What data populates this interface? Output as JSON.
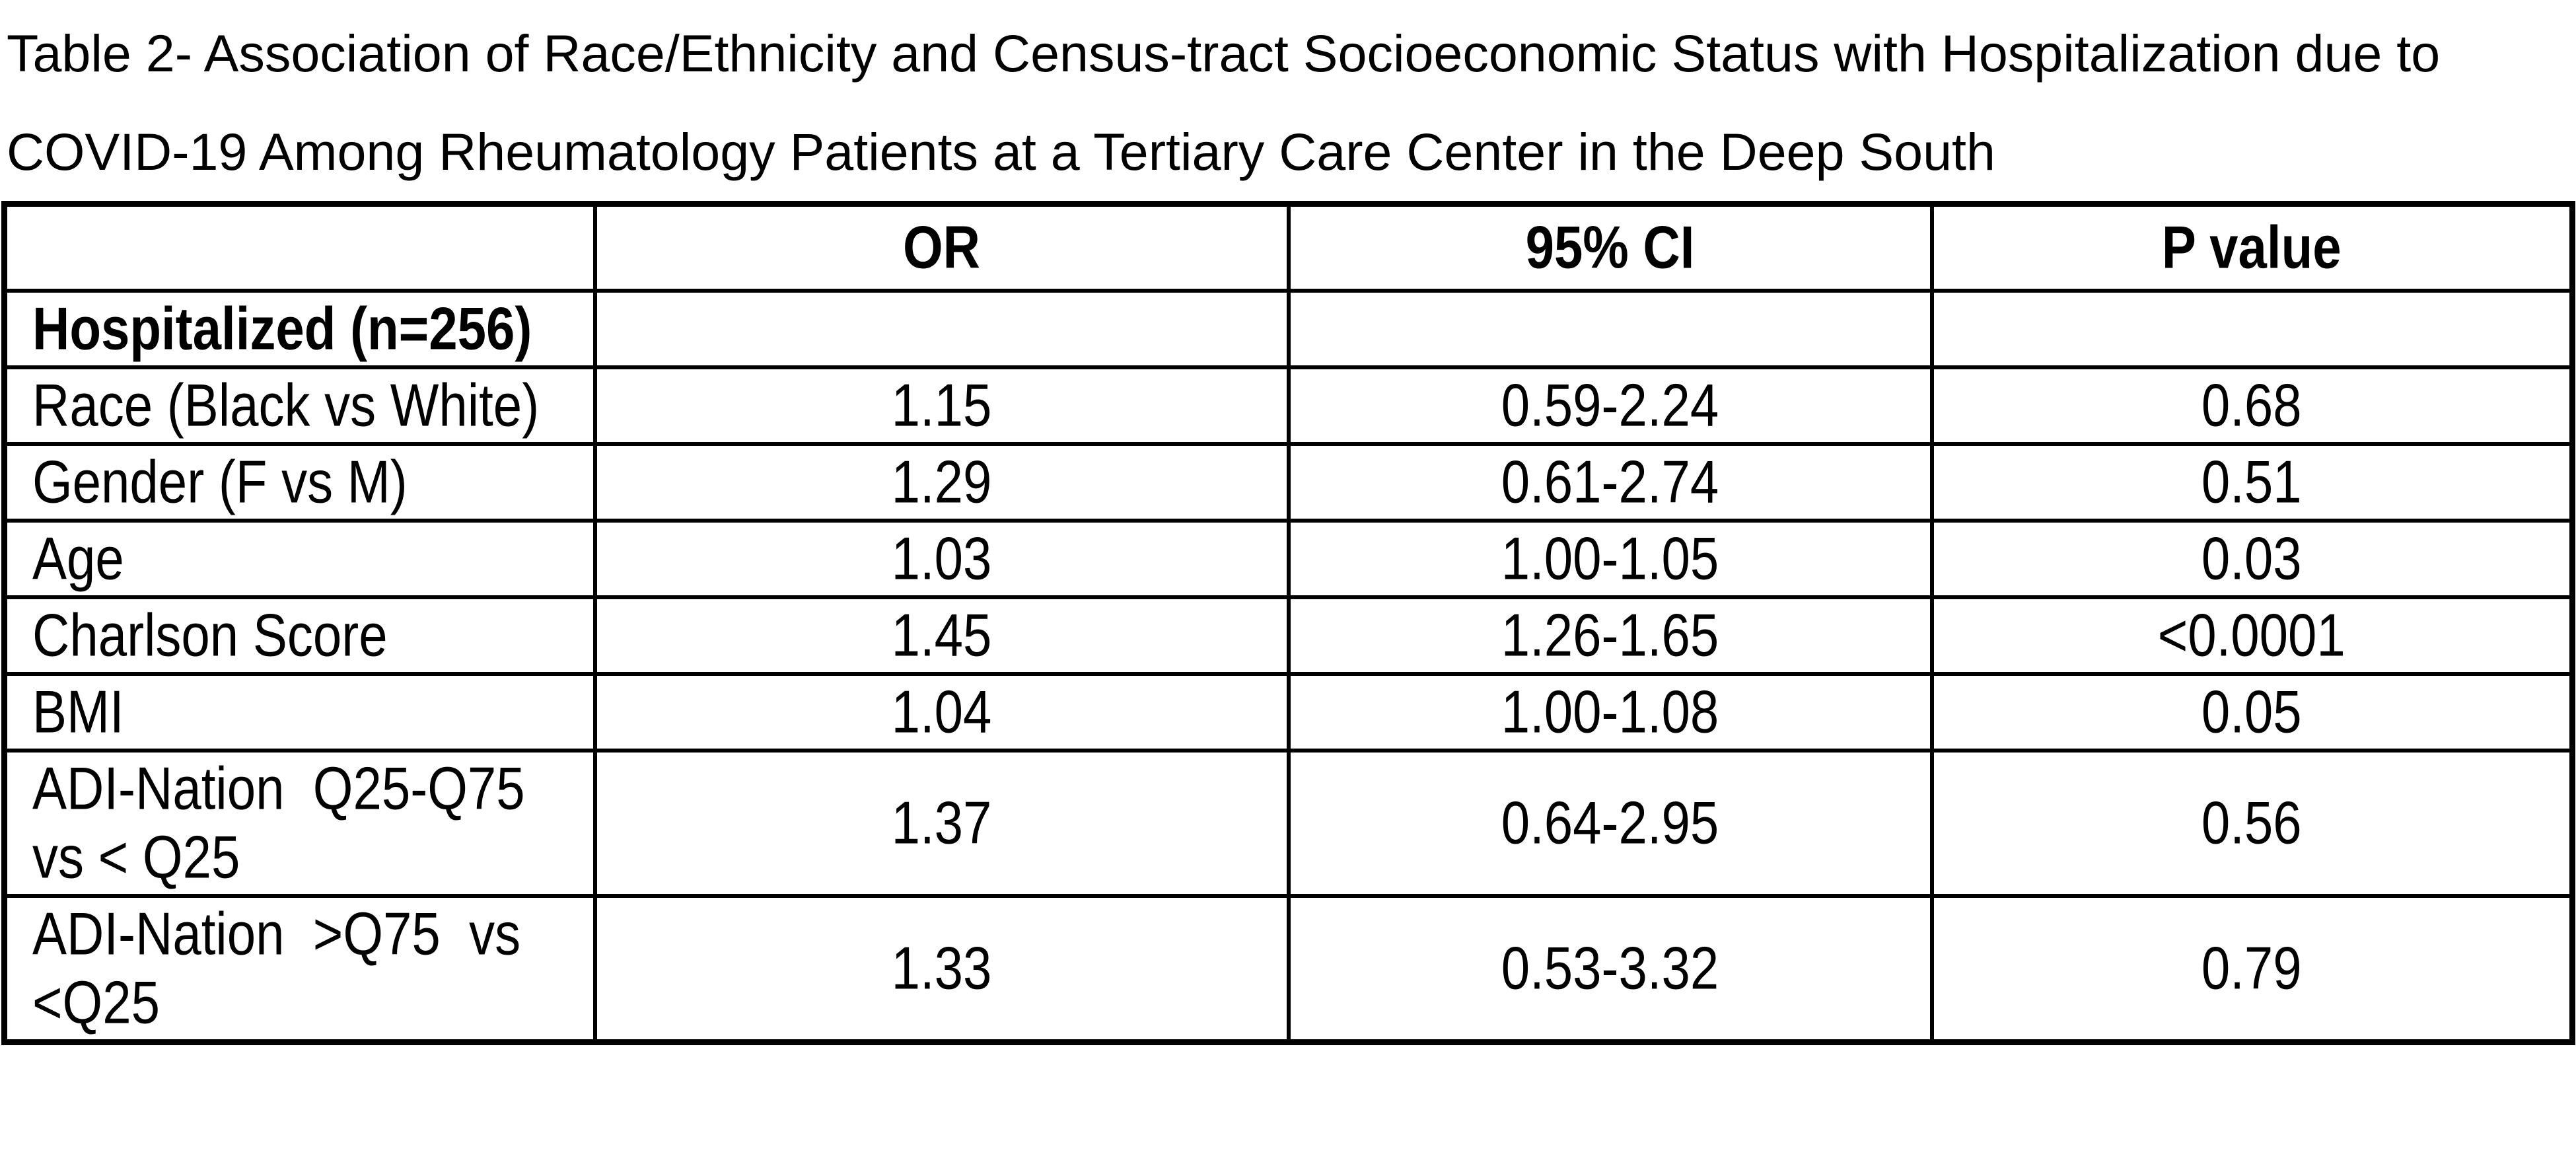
{
  "page": {
    "background": "#ffffff",
    "text_color": "#000000",
    "border_color": "#000000"
  },
  "title": {
    "lines": [
      "Table 2- Association of Race/Ethnicity and Census-tract Socioeconomic Status with Hospitalization due to",
      "COVID-19 Among Rheumatology Patients at a Tertiary Care Center in the Deep South"
    ]
  },
  "table": {
    "columns": [
      "",
      "OR",
      "95% CI",
      "P value"
    ],
    "rows": [
      {
        "label_lines": [
          "Hospitalized (n=256)"
        ],
        "bold": true,
        "or": "",
        "ci": "",
        "p": ""
      },
      {
        "label_lines": [
          "Race (Black vs White)"
        ],
        "bold": false,
        "or": "1.15",
        "ci": "0.59-2.24",
        "p": "0.68"
      },
      {
        "label_lines": [
          "Gender (F vs M)"
        ],
        "bold": false,
        "or": "1.29",
        "ci": "0.61-2.74",
        "p": "0.51"
      },
      {
        "label_lines": [
          "Age"
        ],
        "bold": false,
        "or": "1.03",
        "ci": "1.00-1.05",
        "p": "0.03"
      },
      {
        "label_lines": [
          "Charlson Score"
        ],
        "bold": false,
        "or": "1.45",
        "ci": "1.26-1.65",
        "p": "<0.0001"
      },
      {
        "label_lines": [
          "BMI"
        ],
        "bold": false,
        "or": "1.04",
        "ci": "1.00-1.08",
        "p": "0.05"
      },
      {
        "label_lines": [
          "ADI-Nation  Q25-Q75",
          "vs < Q25"
        ],
        "bold": false,
        "or": "1.37",
        "ci": "0.64-2.95",
        "p": "0.56"
      },
      {
        "label_lines": [
          "ADI-Nation  >Q75  vs",
          "<Q25"
        ],
        "bold": false,
        "or": "1.33",
        "ci": "0.53-3.32",
        "p": "0.79"
      }
    ]
  }
}
